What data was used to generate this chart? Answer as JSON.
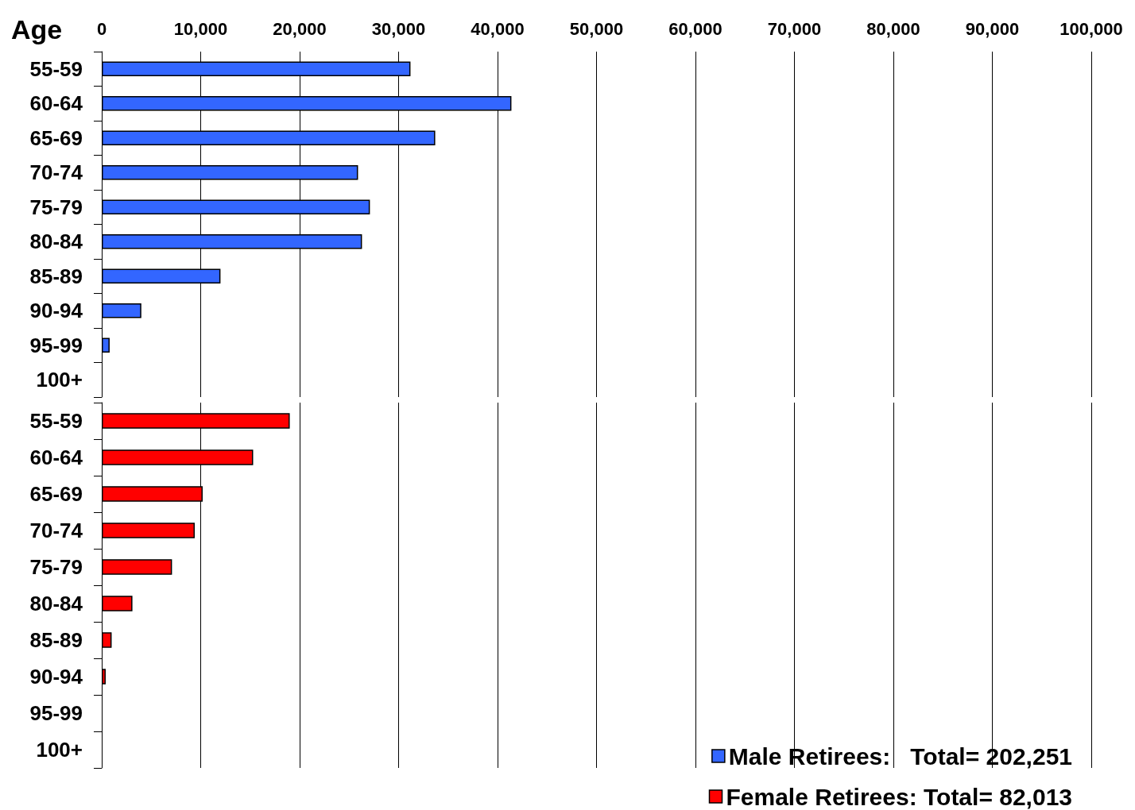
{
  "chart_data": [
    {
      "type": "bar",
      "orientation": "horizontal",
      "ylabel": "Age",
      "categories": [
        "55-59",
        "60-64",
        "65-69",
        "70-74",
        "75-79",
        "80-84",
        "85-89",
        "90-94",
        "95-99",
        "100+"
      ],
      "series": [
        {
          "name": "Male Retirees:   Total= 202,251",
          "color": "#3366ff",
          "values": [
            31200,
            41400,
            33700,
            25900,
            27100,
            26300,
            12000,
            4000,
            800,
            0
          ]
        }
      ],
      "xlim": [
        0,
        100000
      ],
      "xticks": [
        0,
        {
          "value": 10000,
          "label": "10,000"
        },
        {
          "value": 20000,
          "label": "20,000"
        },
        {
          "value": 30000,
          "label": "30,000"
        },
        {
          "value": 40000,
          "label": "40,000"
        },
        {
          "value": 50000,
          "label": "50,000"
        },
        {
          "value": 60000,
          "label": "60,000"
        },
        {
          "value": 70000,
          "label": "70,000"
        },
        {
          "value": 80000,
          "label": "80,000"
        },
        {
          "value": 90000,
          "label": "90,000"
        },
        {
          "value": 100000,
          "label": "100,000"
        }
      ],
      "grid": "x",
      "legend": "bottom right"
    },
    {
      "type": "bar",
      "orientation": "horizontal",
      "categories": [
        "55-59",
        "60-64",
        "65-69",
        "70-74",
        "75-79",
        "80-84",
        "85-89",
        "90-94",
        "95-99",
        "100+"
      ],
      "series": [
        {
          "name": "Female Retirees: Total= 82,013",
          "color": "#ff0000",
          "values": [
            19000,
            15300,
            10200,
            9400,
            7100,
            3100,
            1000,
            400,
            0,
            0
          ]
        }
      ],
      "xlim": [
        0,
        100000
      ],
      "xticks": [
        0,
        10000,
        20000,
        30000,
        40000,
        50000,
        60000,
        70000,
        80000,
        90000,
        100000
      ],
      "grid": "x",
      "legend": "bottom right",
      "tick_labels": "y"
    }
  ]
}
